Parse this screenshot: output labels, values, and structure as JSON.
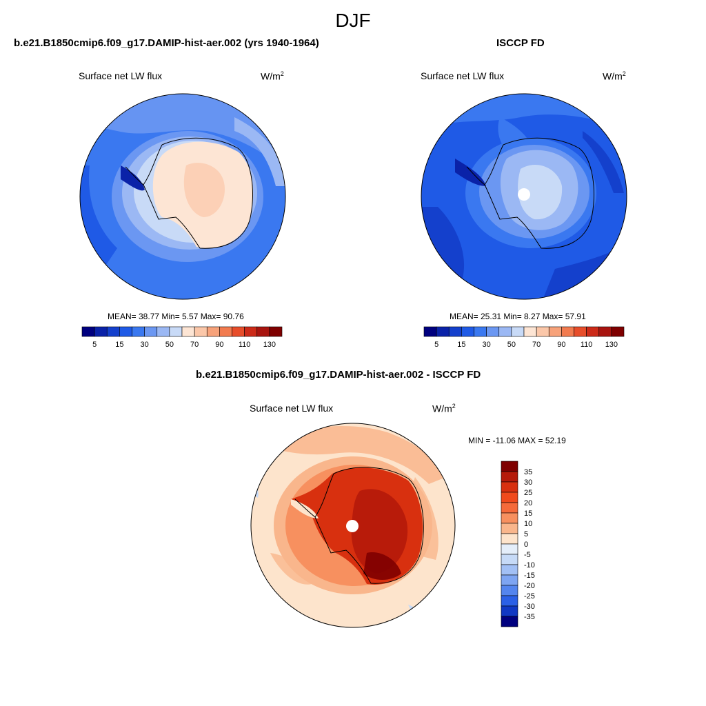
{
  "season": "DJF",
  "panels": [
    {
      "title": "b.e21.B1850cmip6.f09_g17.DAMIP-hist-aer.002 (yrs 1940-1964)",
      "variable": "Surface net LW flux",
      "units_base": "W/m",
      "units_exp": "2",
      "stats": "MEAN=  38.77  Min=   5.57  Max=  90.76",
      "colorbar": {
        "colors": [
          "#00007f",
          "#0a22a8",
          "#1440cc",
          "#1f5ae6",
          "#3a78f0",
          "#6b97f2",
          "#9bb8f4",
          "#c8daf7",
          "#fde5d4",
          "#fbc7a9",
          "#f7a27a",
          "#f27b4f",
          "#e74d2a",
          "#cc2a18",
          "#a8140f",
          "#7f0000"
        ],
        "tick_labels": [
          "5",
          "15",
          "30",
          "50",
          "70",
          "90",
          "110",
          "130"
        ]
      }
    },
    {
      "title": "ISCCP FD",
      "variable": "Surface net LW flux",
      "units_base": "W/m",
      "units_exp": "2",
      "stats": "MEAN=  25.31  Min=   8.27  Max=  57.91",
      "colorbar": {
        "colors": [
          "#00007f",
          "#0a22a8",
          "#1440cc",
          "#1f5ae6",
          "#3a78f0",
          "#6b97f2",
          "#9bb8f4",
          "#c8daf7",
          "#fde5d4",
          "#fbc7a9",
          "#f7a27a",
          "#f27b4f",
          "#e74d2a",
          "#cc2a18",
          "#a8140f",
          "#7f0000"
        ],
        "tick_labels": [
          "5",
          "15",
          "30",
          "50",
          "70",
          "90",
          "110",
          "130"
        ]
      }
    },
    {
      "title": "b.e21.B1850cmip6.f09_g17.DAMIP-hist-aer.002 - ISCCP FD",
      "variable": "Surface net LW flux",
      "units_base": "W/m",
      "units_exp": "2",
      "stats": "MIN = -11.06 MAX =  52.19",
      "colorbar": {
        "colors": [
          "#7f0000",
          "#b51a0a",
          "#d8300f",
          "#f04a1c",
          "#f56a3a",
          "#f7905f",
          "#f9b68c",
          "#fde4cc",
          "#e4eefa",
          "#c6daf7",
          "#a2c0f5",
          "#7ea5f2",
          "#5485ee",
          "#2b60e6",
          "#1038c4",
          "#00007f"
        ],
        "tick_labels": [
          "35",
          "30",
          "25",
          "20",
          "15",
          "10",
          "5",
          "0",
          "-5",
          "-10",
          "-15",
          "-20",
          "-25",
          "-30",
          "-35"
        ]
      }
    }
  ]
}
